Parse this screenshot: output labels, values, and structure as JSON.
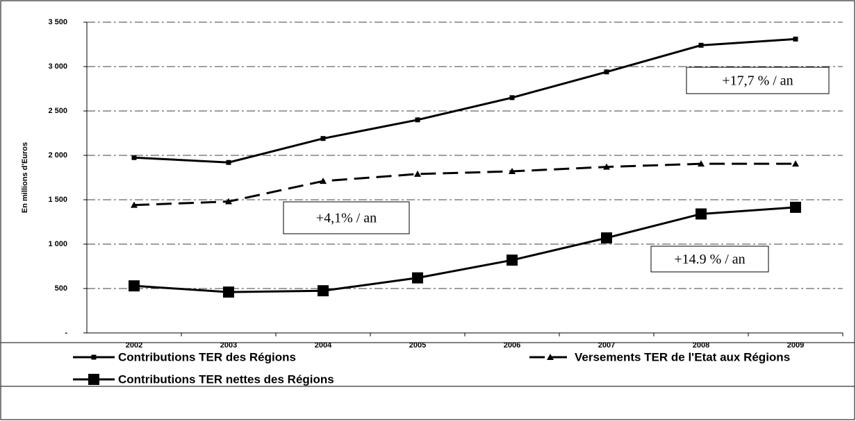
{
  "chart_data": {
    "type": "line",
    "y_label": "En millions d'Euros",
    "categories": [
      "2002",
      "2003",
      "2004",
      "2005",
      "2006",
      "2007",
      "2008",
      "2009"
    ],
    "series": [
      {
        "name": "Contributions TER des Régions",
        "color": "#000000",
        "line_style": "solid",
        "marker": "small-square",
        "values": [
          1975,
          1920,
          2190,
          2400,
          2650,
          2940,
          3240,
          3310
        ]
      },
      {
        "name": "Versements TER de l'Etat aux Régions",
        "color": "#000000",
        "line_style": "dashed",
        "marker": "triangle",
        "values": [
          1440,
          1480,
          1710,
          1790,
          1820,
          1870,
          1905,
          1905
        ]
      },
      {
        "name": "Contributions TER nettes des Régions",
        "color": "#000000",
        "line_style": "solid",
        "marker": "large-square",
        "values": [
          530,
          460,
          475,
          620,
          820,
          1070,
          1340,
          1415
        ]
      }
    ],
    "ylim": [
      0,
      3500
    ],
    "yticks": [
      {
        "value": 0,
        "label": "-"
      },
      500,
      {
        "value": 1000,
        "label": "1 000"
      },
      {
        "value": 1500,
        "label": "1 500"
      },
      {
        "value": 2000,
        "label": "2 000"
      },
      {
        "value": 2500,
        "label": "2 500"
      },
      {
        "value": 3000,
        "label": "3 000"
      },
      {
        "value": 3500,
        "label": "3 500"
      }
    ],
    "grid": true,
    "annotations": [
      "+17,7 % / an",
      "+4,1% / an",
      "+14.9 % / an"
    ]
  }
}
